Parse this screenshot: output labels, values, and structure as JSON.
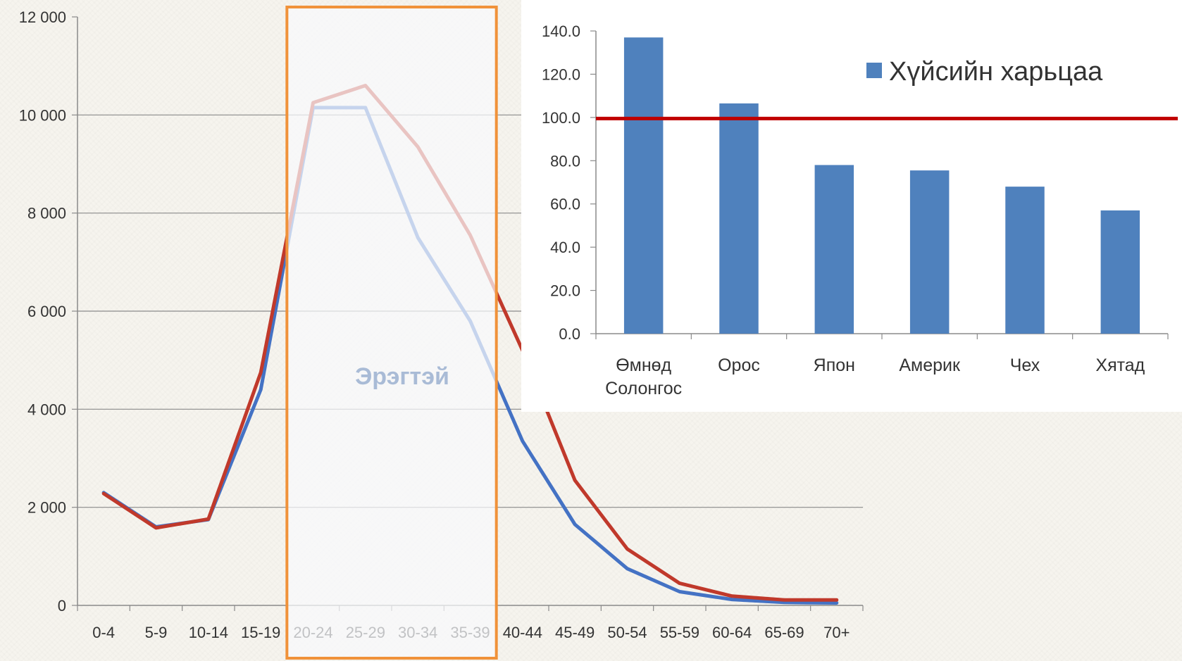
{
  "chart_data": [
    {
      "type": "line",
      "categories": [
        "0-4",
        "5-9",
        "10-14",
        "15-19",
        "20-24",
        "25-29",
        "30-34",
        "35-39",
        "40-44",
        "45-49",
        "50-54",
        "55-59",
        "60-64",
        "65-69",
        "70+"
      ],
      "series": [
        {
          "color": "#4472c4",
          "values": [
            2300,
            1600,
            1750,
            4400,
            10150,
            10150,
            7500,
            5800,
            3350,
            1650,
            750,
            280,
            120,
            60,
            50
          ]
        },
        {
          "color": "#c0392b",
          "values": [
            2280,
            1580,
            1760,
            4750,
            10250,
            10600,
            9350,
            7550,
            5200,
            2550,
            1150,
            450,
            190,
            110,
            110
          ]
        }
      ],
      "ylim": [
        0,
        12000
      ],
      "yticks": [
        0,
        2000,
        4000,
        6000,
        8000,
        10000
      ],
      "ytick_labels": [
        "0",
        "2 000",
        "4 000",
        "6 000",
        "8 000",
        "10 000"
      ],
      "ytick_top_label": "12 000",
      "highlight": {
        "from_category": "20-24",
        "to_category": "35-39",
        "label": "Эрэгтэй",
        "border_color": "#f0923a"
      }
    },
    {
      "type": "bar",
      "categories": [
        "Өмнөд Солонгос",
        "Орос",
        "Япон",
        "Америк",
        "Чех",
        "Хятад"
      ],
      "category_lines": [
        [
          "Өмнөд",
          "Солонгос"
        ],
        [
          "Орос"
        ],
        [
          "Япон"
        ],
        [
          "Америк"
        ],
        [
          "Чех"
        ],
        [
          "Хятад"
        ]
      ],
      "series": [
        {
          "name": "Хүйсийн харьцаа",
          "color": "#4f81bd",
          "values": [
            137.0,
            106.5,
            78.0,
            75.5,
            68.0,
            57.0
          ]
        }
      ],
      "ylim": [
        0,
        140
      ],
      "yticks": [
        0,
        20,
        40,
        60,
        80,
        100,
        120,
        140
      ],
      "ytick_labels": [
        "0.0",
        "20.0",
        "40.0",
        "60.0",
        "80.0",
        "100.0",
        "120.0",
        "140.0"
      ],
      "reference_line": {
        "value": 99.5,
        "color": "#c00000"
      },
      "legend": "top-right"
    }
  ]
}
